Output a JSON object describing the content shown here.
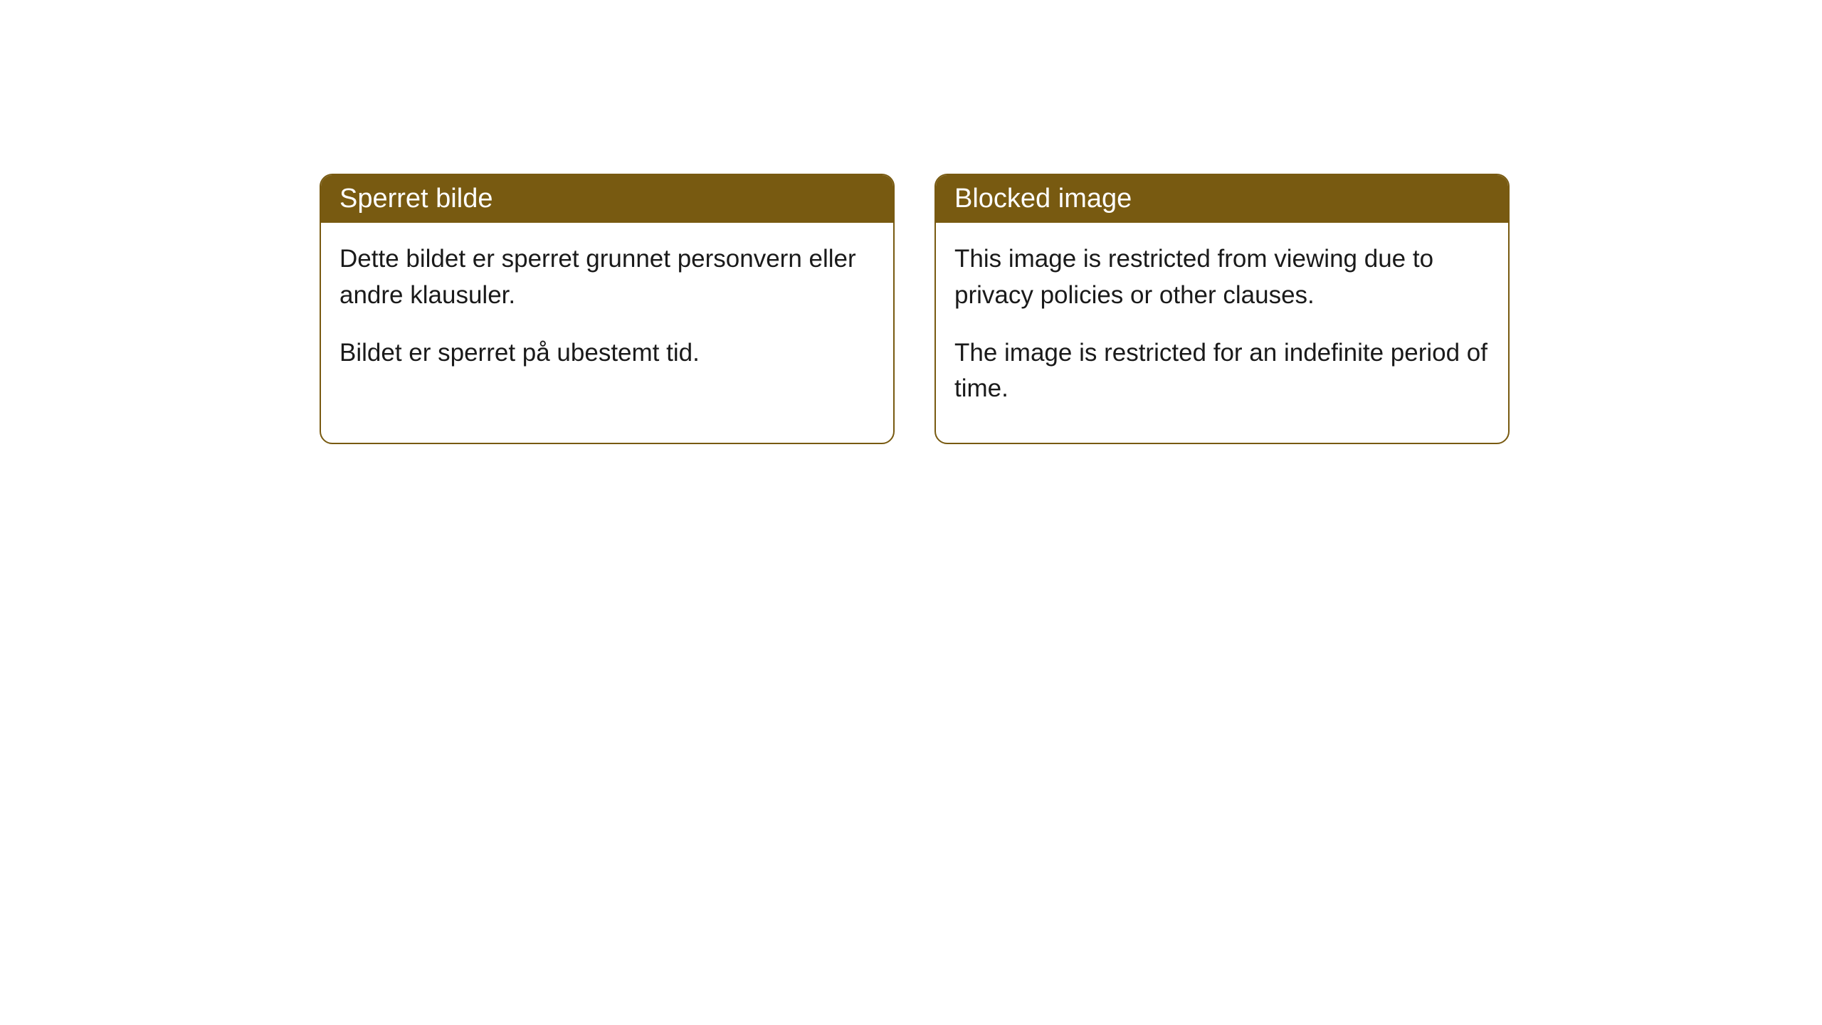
{
  "cards": [
    {
      "header_title": "Sperret bilde",
      "body_paragraph_1": "Dette bildet er sperret grunnet personvern eller andre klausuler.",
      "body_paragraph_2": "Bildet er sperret på ubestemt tid."
    },
    {
      "header_title": "Blocked image",
      "body_paragraph_1": "This image is restricted from viewing due to privacy policies or other clauses.",
      "body_paragraph_2": "The image is restricted for an indefinite period of time."
    }
  ],
  "colors": {
    "header_bg": "#785a11",
    "header_text": "#ffffff",
    "border": "#785a11",
    "body_text": "#1a1a1a",
    "card_bg": "#ffffff",
    "page_bg": "#ffffff"
  }
}
